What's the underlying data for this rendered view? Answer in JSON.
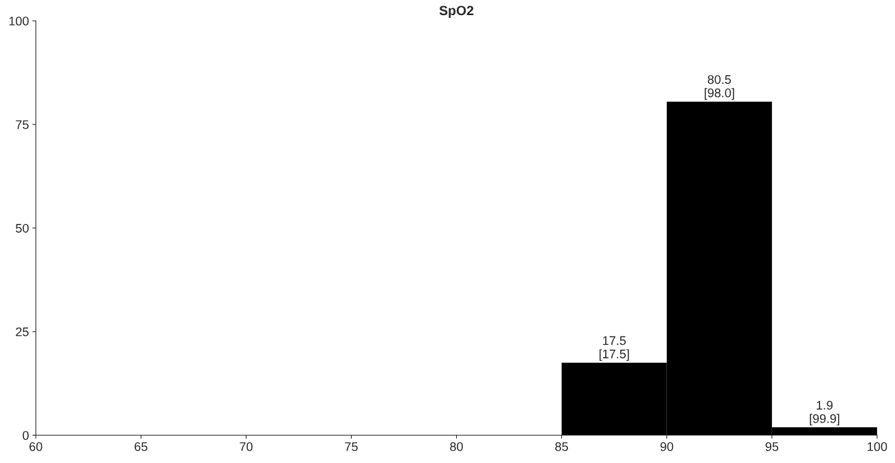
{
  "chart_data": {
    "type": "histogram",
    "title": "SpO2",
    "bins": [
      60,
      65,
      70,
      75,
      80,
      85,
      90,
      95,
      100
    ],
    "values": [
      0,
      0,
      0,
      0,
      0,
      17.5,
      80.5,
      1.9
    ],
    "value_labels": [
      null,
      null,
      null,
      null,
      null,
      "17.5\n[17.5]",
      "80.5\n[98.0]",
      "1.9\n[99.9]"
    ],
    "color": "#000000",
    "xlim": [
      60,
      100
    ],
    "xticks": [
      60,
      65,
      70,
      75,
      80,
      85,
      90,
      95,
      100
    ],
    "ylim": [
      0,
      100
    ],
    "yticks": [
      0,
      25,
      50,
      75,
      100
    ]
  }
}
